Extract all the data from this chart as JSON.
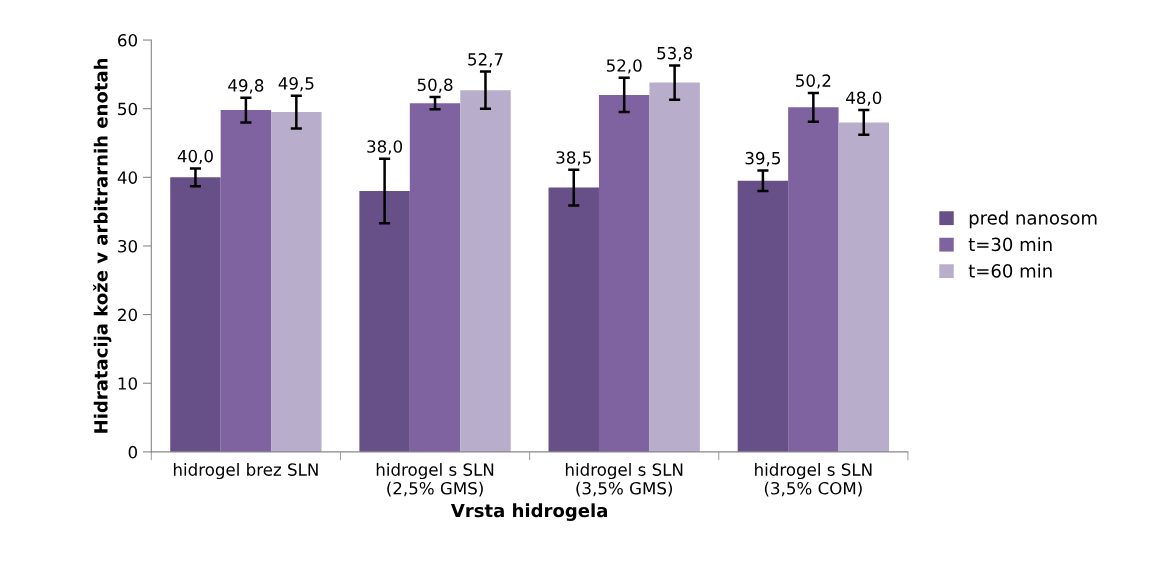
{
  "chart_data": {
    "type": "bar",
    "xlabel": "Vrsta hidrogela",
    "ylabel": "Hidratacija kože v arbitrarnih enotah",
    "categories": [
      "hidrogel brez SLN",
      "hidrogel s SLN\n(2,5% GMS)",
      "hidrogel s SLN\n(3,5% GMS)",
      "hidrogel s SLN\n(3,5% COM)"
    ],
    "series": [
      {
        "name": "pred nanosom",
        "color": "#674f87",
        "values": [
          40.0,
          38.0,
          38.5,
          39.5
        ],
        "errors": [
          1.3,
          4.7,
          2.6,
          1.5
        ],
        "value_labels": [
          "40,0",
          "38,0",
          "38,5",
          "39,5"
        ]
      },
      {
        "name": "t=30 min",
        "color": "#7f62a0",
        "values": [
          49.8,
          50.8,
          52.0,
          50.2
        ],
        "errors": [
          1.8,
          0.9,
          2.5,
          2.1
        ],
        "value_labels": [
          "49,8",
          "50,8",
          "52,0",
          "50,2"
        ]
      },
      {
        "name": "t=60 min",
        "color": "#b8aecb",
        "values": [
          49.5,
          52.7,
          53.8,
          48.0
        ],
        "errors": [
          2.4,
          2.7,
          2.5,
          1.8
        ],
        "value_labels": [
          "49,5",
          "52,7",
          "53,8",
          "48,0"
        ]
      }
    ],
    "ylim": [
      0,
      60
    ],
    "yticks": [
      0,
      10,
      20,
      30,
      40,
      50,
      60
    ],
    "grid": false,
    "legend": "right"
  }
}
